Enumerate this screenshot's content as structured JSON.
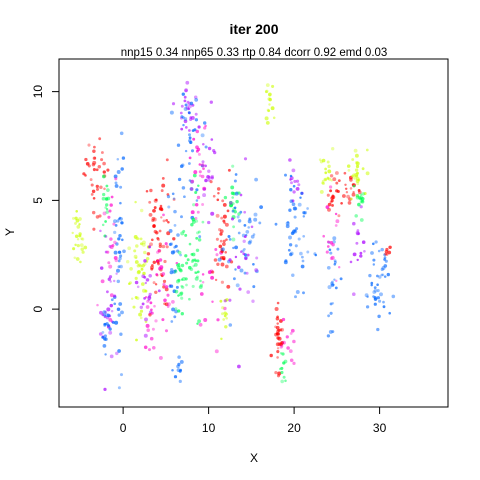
{
  "chart_data": {
    "type": "scatter",
    "title": "iter 200",
    "subtitle": "nnp15 0.34 nnp65 0.33 rtp 0.84 dcorr 0.92 emd 0.03",
    "xlabel": "X",
    "ylabel": "Y",
    "xlim": [
      -7.5,
      38
    ],
    "ylim": [
      -4.5,
      11.5
    ],
    "xticks": [
      0,
      10,
      20,
      30
    ],
    "xtick_labels": [
      "0",
      "10",
      "20",
      "30"
    ],
    "yticks": [
      0,
      5,
      10
    ],
    "ytick_labels": [
      "0",
      "5",
      "10"
    ],
    "grid": false,
    "colors": {
      "red": "#ff0000",
      "yellow": "#ccff00",
      "green": "#00ff55",
      "blue": "#0066ff",
      "purple": "#aa00ff",
      "magenta": "#ff00cc"
    },
    "clusters": [
      {
        "color": "red",
        "cx": -3.2,
        "cy": 6.3,
        "sx": 0.7,
        "sy": 1.0,
        "n": 35
      },
      {
        "color": "green",
        "cx": -2.1,
        "cy": 4.6,
        "sx": 0.25,
        "sy": 0.6,
        "n": 15
      },
      {
        "color": "yellow",
        "cx": -5.2,
        "cy": 3.3,
        "sx": 0.4,
        "sy": 0.8,
        "n": 25
      },
      {
        "color": "blue",
        "cx": -0.5,
        "cy": 2.8,
        "sx": 0.35,
        "sy": 2.8,
        "n": 45
      },
      {
        "color": "purple",
        "cx": -1.6,
        "cy": 0.0,
        "sx": 0.5,
        "sy": 1.6,
        "n": 30
      },
      {
        "color": "blue",
        "cx": -1.8,
        "cy": -0.8,
        "sx": 0.4,
        "sy": 0.6,
        "n": 20
      },
      {
        "color": "magenta",
        "cx": -1.3,
        "cy": 2.5,
        "sx": 0.5,
        "sy": 1.5,
        "n": 20
      },
      {
        "color": "yellow",
        "cx": 1.8,
        "cy": 2.0,
        "sx": 0.6,
        "sy": 1.3,
        "n": 45
      },
      {
        "color": "purple",
        "cx": 2.6,
        "cy": 1.3,
        "sx": 0.5,
        "sy": 1.2,
        "n": 20
      },
      {
        "color": "red",
        "cx": 3.4,
        "cy": 3.0,
        "sx": 0.3,
        "sy": 1.3,
        "n": 20
      },
      {
        "color": "magenta",
        "cx": 3.0,
        "cy": -0.7,
        "sx": 0.4,
        "sy": 0.7,
        "n": 15
      },
      {
        "color": "red",
        "cx": 4.5,
        "cy": 3.8,
        "sx": 0.6,
        "sy": 1.6,
        "n": 45
      },
      {
        "color": "magenta",
        "cx": 4.7,
        "cy": 1.0,
        "sx": 0.5,
        "sy": 1.4,
        "n": 25
      },
      {
        "color": "blue",
        "cx": 5.9,
        "cy": 1.5,
        "sx": 0.35,
        "sy": 2.2,
        "n": 30
      },
      {
        "color": "blue",
        "cx": 6.4,
        "cy": -2.7,
        "sx": 0.3,
        "sy": 0.3,
        "n": 10
      },
      {
        "color": "green",
        "cx": 6.6,
        "cy": 1.6,
        "sx": 0.45,
        "sy": 1.0,
        "n": 25
      },
      {
        "color": "purple",
        "cx": 7.6,
        "cy": 9.2,
        "sx": 0.6,
        "sy": 0.7,
        "n": 25
      },
      {
        "color": "blue",
        "cx": 7.8,
        "cy": 7.3,
        "sx": 0.8,
        "sy": 1.6,
        "n": 40
      },
      {
        "color": "green",
        "cx": 8.0,
        "cy": 2.4,
        "sx": 0.6,
        "sy": 1.6,
        "n": 45
      },
      {
        "color": "magenta",
        "cx": 8.8,
        "cy": 6.4,
        "sx": 0.6,
        "sy": 1.0,
        "n": 25
      },
      {
        "color": "purple",
        "cx": 9.9,
        "cy": 6.3,
        "sx": 0.5,
        "sy": 1.5,
        "n": 20
      },
      {
        "color": "magenta",
        "cx": 10.0,
        "cy": 0.0,
        "sx": 1.0,
        "sy": 1.5,
        "n": 15
      },
      {
        "color": "red",
        "cx": 11.6,
        "cy": 3.5,
        "sx": 0.5,
        "sy": 1.4,
        "n": 40
      },
      {
        "color": "yellow",
        "cx": 11.9,
        "cy": -0.4,
        "sx": 0.25,
        "sy": 0.5,
        "n": 12
      },
      {
        "color": "green",
        "cx": 12.8,
        "cy": 5.0,
        "sx": 0.35,
        "sy": 0.6,
        "n": 20
      },
      {
        "color": "blue",
        "cx": 13.9,
        "cy": 3.5,
        "sx": 1.0,
        "sy": 1.5,
        "n": 45
      },
      {
        "color": "purple",
        "cx": 14.2,
        "cy": 3.0,
        "sx": 0.8,
        "sy": 1.5,
        "n": 25
      },
      {
        "color": "yellow",
        "cx": 17.2,
        "cy": 9.3,
        "sx": 0.25,
        "sy": 0.6,
        "n": 15
      },
      {
        "color": "red",
        "cx": 18.2,
        "cy": -1.4,
        "sx": 0.3,
        "sy": 0.7,
        "n": 30
      },
      {
        "color": "green",
        "cx": 18.6,
        "cy": -2.6,
        "sx": 0.2,
        "sy": 0.5,
        "n": 10
      },
      {
        "color": "magenta",
        "cx": 19.3,
        "cy": -1.6,
        "sx": 0.5,
        "sy": 0.5,
        "n": 12
      },
      {
        "color": "purple",
        "cx": 20.0,
        "cy": 5.5,
        "sx": 0.4,
        "sy": 0.5,
        "n": 12
      },
      {
        "color": "blue",
        "cx": 20.1,
        "cy": 4.0,
        "sx": 0.9,
        "sy": 1.3,
        "n": 50
      },
      {
        "color": "yellow",
        "cx": 23.6,
        "cy": 6.2,
        "sx": 0.5,
        "sy": 0.7,
        "n": 20
      },
      {
        "color": "red",
        "cx": 24.3,
        "cy": 5.1,
        "sx": 0.3,
        "sy": 0.4,
        "n": 12
      },
      {
        "color": "blue",
        "cx": 24.5,
        "cy": 1.2,
        "sx": 0.4,
        "sy": 1.0,
        "n": 25
      },
      {
        "color": "magenta",
        "cx": 24.5,
        "cy": 3.0,
        "sx": 0.5,
        "sy": 1.0,
        "n": 15
      },
      {
        "color": "red",
        "cx": 26.3,
        "cy": 5.5,
        "sx": 0.9,
        "sy": 0.4,
        "n": 25
      },
      {
        "color": "yellow",
        "cx": 27.3,
        "cy": 6.6,
        "sx": 0.6,
        "sy": 0.6,
        "n": 25
      },
      {
        "color": "green",
        "cx": 27.6,
        "cy": 4.8,
        "sx": 0.4,
        "sy": 0.3,
        "n": 15
      },
      {
        "color": "purple",
        "cx": 27.4,
        "cy": 3.0,
        "sx": 0.4,
        "sy": 1.3,
        "n": 15
      },
      {
        "color": "blue",
        "cx": 29.5,
        "cy": 1.0,
        "sx": 0.8,
        "sy": 1.0,
        "n": 45
      },
      {
        "color": "red",
        "cx": 31.0,
        "cy": 2.7,
        "sx": 0.3,
        "sy": 0.1,
        "n": 6
      }
    ]
  }
}
